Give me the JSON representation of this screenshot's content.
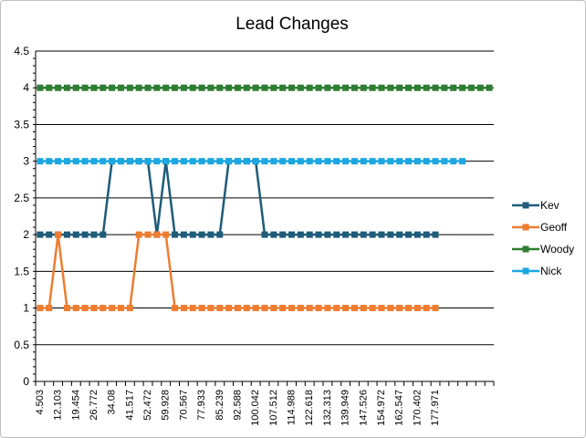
{
  "chart_data": {
    "type": "line",
    "title": "Lead Changes",
    "xlabel": "",
    "ylabel": "",
    "ylim": [
      0,
      4.5
    ],
    "yticks": [
      "0",
      "0.5",
      "1",
      "1.5",
      "2",
      "2.5",
      "3",
      "3.5",
      "4",
      "4.5"
    ],
    "xtick_labels": [
      "4.503",
      "12.103",
      "19.454",
      "26.772",
      "34.08",
      "41.517",
      "52.472",
      "59.928",
      "70.567",
      "77.933",
      "85.239",
      "92.588",
      "100.042",
      "107.512",
      "114.988",
      "122.618",
      "132.313",
      "139.949",
      "147.526",
      "154.972",
      "162.547",
      "170.402",
      "177.971"
    ],
    "grid": "horizontal",
    "legend_position": "right",
    "series": [
      {
        "name": "Kev",
        "color": "#1f5c7a",
        "values": [
          2,
          2,
          2,
          2,
          2,
          2,
          2,
          2,
          3,
          3,
          3,
          3,
          3,
          2,
          3,
          2,
          2,
          2,
          2,
          2,
          2,
          3,
          3,
          3,
          3,
          2,
          2,
          2,
          2,
          2,
          2,
          2,
          2,
          2,
          2,
          2,
          2,
          2,
          2,
          2,
          2,
          2,
          2,
          2,
          2
        ]
      },
      {
        "name": "Geoff",
        "color": "#ed7d31",
        "values": [
          1,
          1,
          2,
          1,
          1,
          1,
          1,
          1,
          1,
          1,
          1,
          2,
          2,
          2,
          2,
          1,
          1,
          1,
          1,
          1,
          1,
          1,
          1,
          1,
          1,
          1,
          1,
          1,
          1,
          1,
          1,
          1,
          1,
          1,
          1,
          1,
          1,
          1,
          1,
          1,
          1,
          1,
          1,
          1,
          1
        ]
      },
      {
        "name": "Woody",
        "color": "#2e7d32",
        "values": [
          4,
          4,
          4,
          4,
          4,
          4,
          4,
          4,
          4,
          4,
          4,
          4,
          4,
          4,
          4,
          4,
          4,
          4,
          4,
          4,
          4,
          4,
          4,
          4,
          4,
          4,
          4,
          4,
          4,
          4,
          4,
          4,
          4,
          4,
          4,
          4,
          4,
          4,
          4,
          4,
          4,
          4,
          4,
          4,
          4,
          4,
          4,
          4,
          4,
          4,
          4
        ]
      },
      {
        "name": "Nick",
        "color": "#1ca7e0",
        "values": [
          3,
          3,
          3,
          3,
          3,
          3,
          3,
          3,
          3,
          3,
          3,
          3,
          3,
          3,
          3,
          3,
          3,
          3,
          3,
          3,
          3,
          3,
          3,
          3,
          3,
          3,
          3,
          3,
          3,
          3,
          3,
          3,
          3,
          3,
          3,
          3,
          3,
          3,
          3,
          3,
          3,
          3,
          3,
          3,
          3,
          3,
          3,
          3
        ]
      }
    ]
  }
}
